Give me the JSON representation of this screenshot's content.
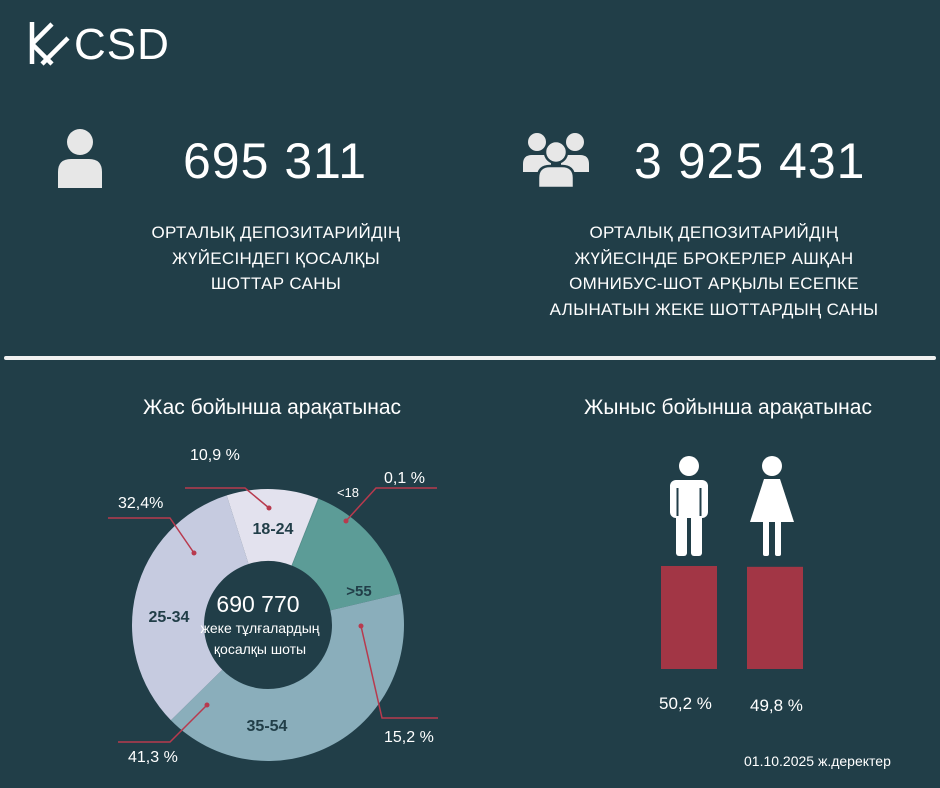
{
  "brand": {
    "name": "CSD"
  },
  "icons": {
    "single": "person-icon",
    "group": "people-group-icon",
    "male": "man-icon",
    "female": "woman-icon"
  },
  "colors": {
    "background": "#213e48",
    "seg_18_24": "#e3e2ee",
    "seg_25_34": "#c6cbe0",
    "seg_35_54": "#8aaebb",
    "seg_55": "#5c9c97",
    "bar": "#a23645",
    "leader": "#b83a4e"
  },
  "stats": [
    {
      "value": "695 311",
      "caption": [
        "ОРТАЛЫҚ ДЕПОЗИТАРИЙДІҢ",
        "ЖҮЙЕСІНДЕГІ ҚОСАЛҚЫ",
        "ШОТТАР САНЫ"
      ]
    },
    {
      "value": "3 925 431",
      "caption": [
        "ОРТАЛЫҚ ДЕПОЗИТАРИЙДІҢ",
        "ЖҮЙЕСІНДЕ БРОКЕРЛЕР АШҚАН",
        "ОМНИБУС-ШОТ АРҚЫЛЫ ЕСЕПКЕ",
        "АЛЫНАТЫН ЖЕКЕ ШОТТАРДЫҢ САНЫ"
      ]
    }
  ],
  "footer": {
    "date": "01.10.2025 ж.деректер"
  },
  "chart_data": [
    {
      "type": "pie",
      "title": "Жас бойынша арақатынас",
      "center_value": "690 770",
      "center_caption": [
        "жеке тұлғалардың",
        "қосалқы шоты"
      ],
      "slices": [
        {
          "label": "<18",
          "value": 0.1,
          "pct_label": "0,1 %"
        },
        {
          "label": ">55",
          "value": 15.2,
          "pct_label": "15,2 %"
        },
        {
          "label": "35-54",
          "value": 41.3,
          "pct_label": "41,3 %"
        },
        {
          "label": "25-34",
          "value": 32.4,
          "pct_label": "32,4%"
        },
        {
          "label": "18-24",
          "value": 10.9,
          "pct_label": "10,9 %"
        }
      ]
    },
    {
      "type": "bar",
      "title": "Жыныс бойынша арақатынас",
      "categories": [
        "male",
        "female"
      ],
      "values": [
        50.2,
        49.8
      ],
      "value_labels": [
        "50,2 %",
        "49,8 %"
      ]
    }
  ]
}
